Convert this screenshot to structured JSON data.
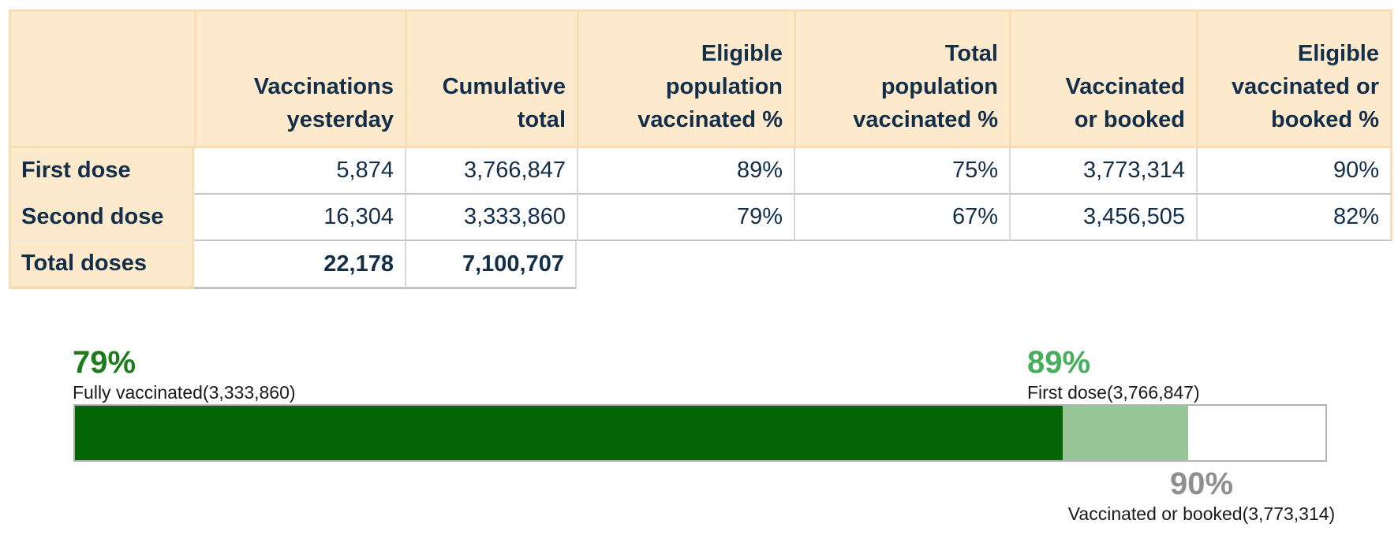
{
  "table": {
    "headers": [
      "",
      "Vaccinations\nyesterday",
      "Cumulative\ntotal",
      "Eligible\npopulation\nvaccinated %",
      "Total\npopulation\nvaccinated %",
      "Vaccinated\nor booked",
      "Eligible\nvaccinated or\nbooked %"
    ],
    "rows": [
      {
        "label": "First dose",
        "values": [
          "5,874",
          "3,766,847",
          "89%",
          "75%",
          "3,773,314",
          "90%"
        ]
      },
      {
        "label": "Second dose",
        "values": [
          "16,304",
          "3,333,860",
          "79%",
          "67%",
          "3,456,505",
          "82%"
        ]
      },
      {
        "label": "Total doses",
        "values": [
          "22,178",
          "7,100,707",
          "",
          "",
          "",
          ""
        ]
      }
    ]
  },
  "chart_data": [
    {
      "type": "table",
      "columns": [
        "",
        "Vaccinations yesterday",
        "Cumulative total",
        "Eligible population vaccinated %",
        "Total population vaccinated %",
        "Vaccinated or booked",
        "Eligible vaccinated or booked %"
      ],
      "rows": [
        [
          "First dose",
          5874,
          3766847,
          "89%",
          "75%",
          3773314,
          "90%"
        ],
        [
          "Second dose",
          16304,
          3333860,
          "79%",
          "67%",
          3456505,
          "82%"
        ],
        [
          "Total doses",
          22178,
          7100707,
          null,
          null,
          null,
          null
        ]
      ]
    },
    {
      "type": "bar",
      "subtype": "stacked-progress",
      "xlim": [
        0,
        100
      ],
      "series": [
        {
          "name": "Fully vaccinated",
          "count": 3333860,
          "percent": 79,
          "color": "#056605"
        },
        {
          "name": "First dose",
          "count": 3766847,
          "percent": 89,
          "color": "#98c598"
        },
        {
          "name": "Vaccinated or booked",
          "count": 3773314,
          "percent": 90,
          "color": "#ffffff"
        }
      ],
      "labels": {
        "fully_vaccinated": {
          "percent": "79%",
          "caption": "Fully vaccinated(3,333,860)",
          "color": "#1d7d1d"
        },
        "first_dose": {
          "percent": "89%",
          "caption": "First dose(3,766,847)",
          "color": "#45af5c"
        },
        "vaccinated_or_booked": {
          "percent": "90%",
          "caption": "Vaccinated or booked(3,773,314)",
          "color": "#8f8f8f"
        }
      },
      "bar_border_color": "#b3b3b3"
    }
  ],
  "colors": {
    "header_bg": "#fdeacd",
    "header_border": "#f8dcb4",
    "text_navy": "#132e49",
    "row_border_gray": "#c4c4c4"
  }
}
